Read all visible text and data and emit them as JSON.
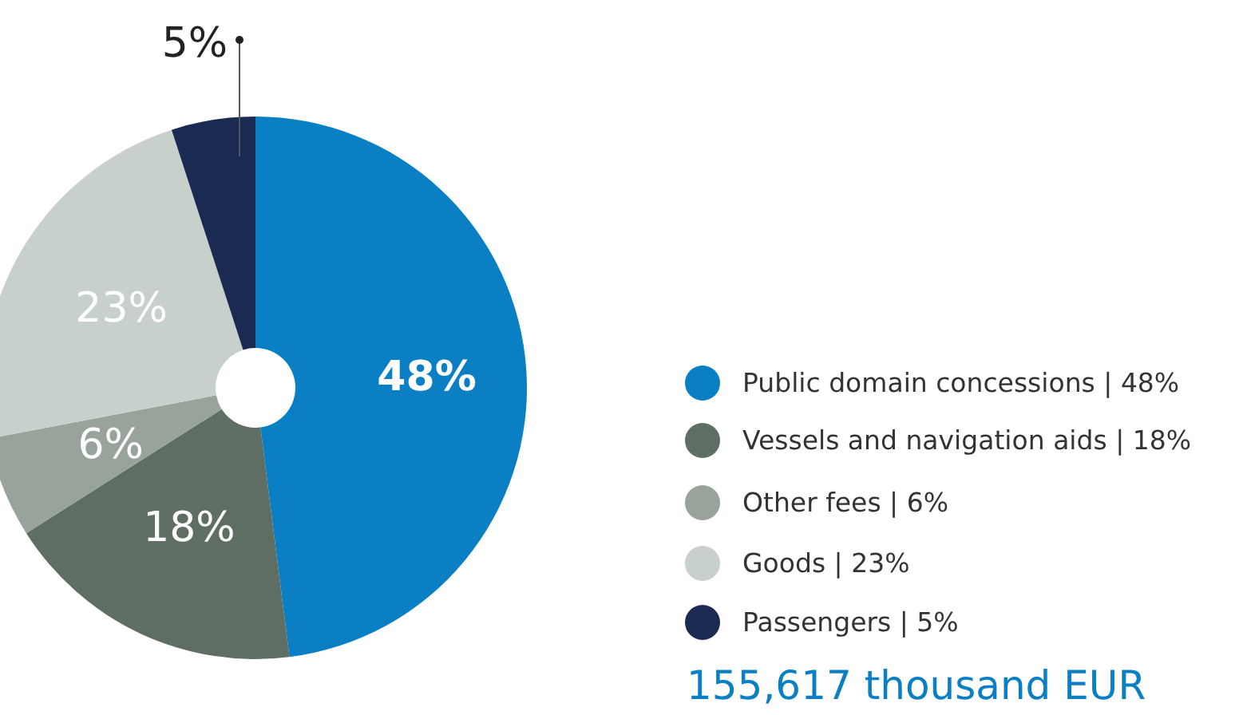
{
  "chart_data": {
    "type": "donut",
    "categories": [
      "Public domain concessions  | 48%",
      "Vessels and navigation aids  | 18%",
      "Other fees  | 6%",
      "Goods  | 23%",
      "Passengers  | 5%"
    ],
    "values": [
      48,
      18,
      6,
      23,
      5
    ],
    "colors": [
      "#0a7fc4",
      "#5f6e63",
      "#97a39b",
      "#c8d0cc",
      "#1b2a52"
    ],
    "value_labels": [
      "48%",
      "18%",
      "6%",
      "23%",
      "5%"
    ],
    "legend": "right",
    "annotations": [
      "155,617 thousand EUR"
    ]
  }
}
